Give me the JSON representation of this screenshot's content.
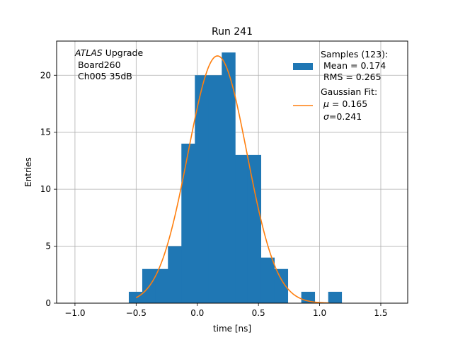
{
  "chart_data": {
    "type": "bar",
    "title": "Run 241",
    "xlabel": "time [ns]",
    "ylabel": "Entries",
    "xlim": [
      -1.15,
      1.72
    ],
    "ylim": [
      0,
      23
    ],
    "grid": true,
    "xticks": [
      -1.0,
      -0.5,
      0.0,
      0.5,
      1.0,
      1.5
    ],
    "xtick_labels": [
      "−1.0",
      "−0.5",
      "0.0",
      "0.5",
      "1.0",
      "1.5"
    ],
    "yticks": [
      0,
      5,
      10,
      15,
      20
    ],
    "ytick_labels": [
      "0",
      "5",
      "10",
      "15",
      "20"
    ],
    "annotation": [
      "ATLAS Upgrade",
      " Board260",
      " Ch005 35dB"
    ],
    "histogram": {
      "name": "Samples (123):",
      "color": "#1f77b4",
      "bin_edges": [
        -0.56,
        -0.45,
        -0.34,
        -0.24,
        -0.13,
        -0.02,
        0.09,
        0.2,
        0.31,
        0.41,
        0.52,
        0.63,
        0.74,
        0.85,
        0.96,
        1.07,
        1.18
      ],
      "counts": [
        1,
        3,
        3,
        5,
        14,
        20,
        20,
        22,
        13,
        13,
        4,
        3,
        0,
        1,
        0,
        1
      ]
    },
    "fit": {
      "name": "Gaussian Fit:",
      "color": "#ff7f0e",
      "mu": 0.165,
      "sigma": 0.241,
      "amplitude": 21.7,
      "x_range": [
        -0.5,
        1.08
      ]
    },
    "legend": {
      "placement": "top-right",
      "entries": [
        {
          "lines": [
            "Samples (123):",
            " Mean = 0.174",
            " RMS = 0.265"
          ]
        },
        {
          "lines": [
            "Gaussian Fit:",
            " μ = 0.165",
            " σ=0.241"
          ]
        }
      ]
    }
  }
}
